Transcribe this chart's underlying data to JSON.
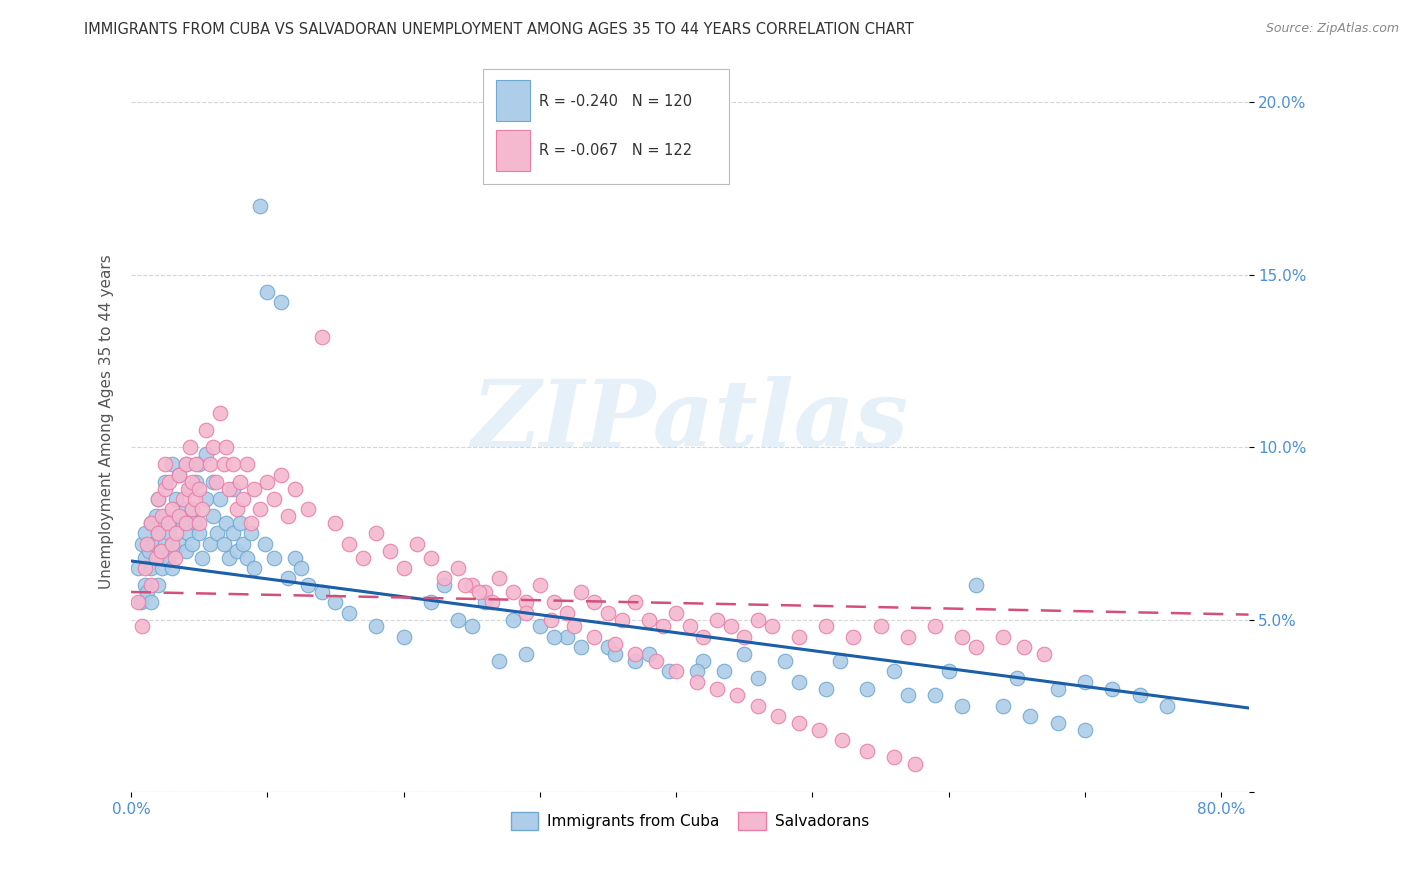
{
  "title": "IMMIGRANTS FROM CUBA VS SALVADORAN UNEMPLOYMENT AMONG AGES 35 TO 44 YEARS CORRELATION CHART",
  "source": "Source: ZipAtlas.com",
  "ylabel": "Unemployment Among Ages 35 to 44 years",
  "xlim": [
    0.0,
    0.82
  ],
  "ylim": [
    0.0,
    0.215
  ],
  "xticks": [
    0.0,
    0.1,
    0.2,
    0.3,
    0.4,
    0.5,
    0.6,
    0.7,
    0.8
  ],
  "yticks": [
    0.0,
    0.05,
    0.1,
    0.15,
    0.2
  ],
  "yticklabels": [
    "",
    "5.0%",
    "10.0%",
    "15.0%",
    "20.0%"
  ],
  "watermark_text": "ZIPatlas",
  "cuba_color": "#aecde8",
  "cuba_edge_color": "#6fa8d0",
  "salv_color": "#f4b8cf",
  "salv_edge_color": "#e87da8",
  "background_color": "#ffffff",
  "grid_color": "#cccccc",
  "cuba_line_color": "#1a5fa8",
  "salv_line_color": "#d4507a",
  "cuba_line_intercept": 0.067,
  "cuba_line_slope": -0.052,
  "salv_line_intercept": 0.058,
  "salv_line_slope": -0.008,
  "cuba_scatter_x": [
    0.005,
    0.007,
    0.008,
    0.01,
    0.01,
    0.01,
    0.012,
    0.013,
    0.015,
    0.015,
    0.015,
    0.017,
    0.018,
    0.02,
    0.02,
    0.02,
    0.02,
    0.022,
    0.022,
    0.023,
    0.025,
    0.025,
    0.025,
    0.027,
    0.028,
    0.03,
    0.03,
    0.03,
    0.032,
    0.033,
    0.035,
    0.035,
    0.038,
    0.04,
    0.04,
    0.04,
    0.042,
    0.043,
    0.045,
    0.045,
    0.047,
    0.048,
    0.05,
    0.05,
    0.052,
    0.055,
    0.055,
    0.058,
    0.06,
    0.06,
    0.063,
    0.065,
    0.068,
    0.07,
    0.072,
    0.075,
    0.075,
    0.078,
    0.08,
    0.082,
    0.085,
    0.088,
    0.09,
    0.095,
    0.098,
    0.1,
    0.105,
    0.11,
    0.115,
    0.12,
    0.125,
    0.13,
    0.14,
    0.15,
    0.16,
    0.18,
    0.2,
    0.22,
    0.24,
    0.26,
    0.28,
    0.3,
    0.32,
    0.35,
    0.38,
    0.42,
    0.45,
    0.48,
    0.52,
    0.56,
    0.6,
    0.62,
    0.65,
    0.68,
    0.7,
    0.72,
    0.74,
    0.76,
    0.23,
    0.25,
    0.27,
    0.29,
    0.31,
    0.33,
    0.355,
    0.37,
    0.395,
    0.415,
    0.435,
    0.46,
    0.49,
    0.51,
    0.54,
    0.57,
    0.59,
    0.61,
    0.64,
    0.66,
    0.68,
    0.7
  ],
  "cuba_scatter_y": [
    0.065,
    0.055,
    0.072,
    0.06,
    0.075,
    0.068,
    0.058,
    0.07,
    0.065,
    0.078,
    0.055,
    0.072,
    0.08,
    0.068,
    0.075,
    0.06,
    0.085,
    0.07,
    0.078,
    0.065,
    0.072,
    0.08,
    0.09,
    0.068,
    0.075,
    0.065,
    0.078,
    0.095,
    0.07,
    0.085,
    0.072,
    0.092,
    0.078,
    0.07,
    0.082,
    0.095,
    0.075,
    0.088,
    0.072,
    0.082,
    0.078,
    0.09,
    0.075,
    0.095,
    0.068,
    0.085,
    0.098,
    0.072,
    0.08,
    0.09,
    0.075,
    0.085,
    0.072,
    0.078,
    0.068,
    0.075,
    0.088,
    0.07,
    0.078,
    0.072,
    0.068,
    0.075,
    0.065,
    0.17,
    0.072,
    0.145,
    0.068,
    0.142,
    0.062,
    0.068,
    0.065,
    0.06,
    0.058,
    0.055,
    0.052,
    0.048,
    0.045,
    0.055,
    0.05,
    0.055,
    0.05,
    0.048,
    0.045,
    0.042,
    0.04,
    0.038,
    0.04,
    0.038,
    0.038,
    0.035,
    0.035,
    0.06,
    0.033,
    0.03,
    0.032,
    0.03,
    0.028,
    0.025,
    0.06,
    0.048,
    0.038,
    0.04,
    0.045,
    0.042,
    0.04,
    0.038,
    0.035,
    0.035,
    0.035,
    0.033,
    0.032,
    0.03,
    0.03,
    0.028,
    0.028,
    0.025,
    0.025,
    0.022,
    0.02,
    0.018
  ],
  "salv_scatter_x": [
    0.005,
    0.008,
    0.01,
    0.012,
    0.015,
    0.015,
    0.018,
    0.02,
    0.02,
    0.022,
    0.023,
    0.025,
    0.025,
    0.027,
    0.028,
    0.03,
    0.03,
    0.032,
    0.033,
    0.035,
    0.035,
    0.038,
    0.04,
    0.04,
    0.042,
    0.043,
    0.045,
    0.045,
    0.047,
    0.048,
    0.05,
    0.05,
    0.052,
    0.055,
    0.058,
    0.06,
    0.062,
    0.065,
    0.068,
    0.07,
    0.072,
    0.075,
    0.078,
    0.08,
    0.082,
    0.085,
    0.088,
    0.09,
    0.095,
    0.1,
    0.105,
    0.11,
    0.115,
    0.12,
    0.13,
    0.14,
    0.15,
    0.16,
    0.17,
    0.18,
    0.19,
    0.2,
    0.21,
    0.22,
    0.23,
    0.24,
    0.25,
    0.26,
    0.27,
    0.28,
    0.29,
    0.3,
    0.31,
    0.32,
    0.33,
    0.34,
    0.35,
    0.36,
    0.37,
    0.38,
    0.39,
    0.4,
    0.41,
    0.42,
    0.43,
    0.44,
    0.45,
    0.46,
    0.47,
    0.49,
    0.51,
    0.53,
    0.55,
    0.57,
    0.59,
    0.61,
    0.62,
    0.64,
    0.655,
    0.67,
    0.245,
    0.255,
    0.265,
    0.29,
    0.308,
    0.325,
    0.34,
    0.355,
    0.37,
    0.385,
    0.4,
    0.415,
    0.43,
    0.445,
    0.46,
    0.475,
    0.49,
    0.505,
    0.522,
    0.54,
    0.56,
    0.575
  ],
  "salv_scatter_y": [
    0.055,
    0.048,
    0.065,
    0.072,
    0.06,
    0.078,
    0.068,
    0.075,
    0.085,
    0.07,
    0.08,
    0.088,
    0.095,
    0.078,
    0.09,
    0.072,
    0.082,
    0.068,
    0.075,
    0.08,
    0.092,
    0.085,
    0.078,
    0.095,
    0.088,
    0.1,
    0.082,
    0.09,
    0.085,
    0.095,
    0.078,
    0.088,
    0.082,
    0.105,
    0.095,
    0.1,
    0.09,
    0.11,
    0.095,
    0.1,
    0.088,
    0.095,
    0.082,
    0.09,
    0.085,
    0.095,
    0.078,
    0.088,
    0.082,
    0.09,
    0.085,
    0.092,
    0.08,
    0.088,
    0.082,
    0.132,
    0.078,
    0.072,
    0.068,
    0.075,
    0.07,
    0.065,
    0.072,
    0.068,
    0.062,
    0.065,
    0.06,
    0.058,
    0.062,
    0.058,
    0.055,
    0.06,
    0.055,
    0.052,
    0.058,
    0.055,
    0.052,
    0.05,
    0.055,
    0.05,
    0.048,
    0.052,
    0.048,
    0.045,
    0.05,
    0.048,
    0.045,
    0.05,
    0.048,
    0.045,
    0.048,
    0.045,
    0.048,
    0.045,
    0.048,
    0.045,
    0.042,
    0.045,
    0.042,
    0.04,
    0.06,
    0.058,
    0.055,
    0.052,
    0.05,
    0.048,
    0.045,
    0.043,
    0.04,
    0.038,
    0.035,
    0.032,
    0.03,
    0.028,
    0.025,
    0.022,
    0.02,
    0.018,
    0.015,
    0.012,
    0.01,
    0.008
  ]
}
